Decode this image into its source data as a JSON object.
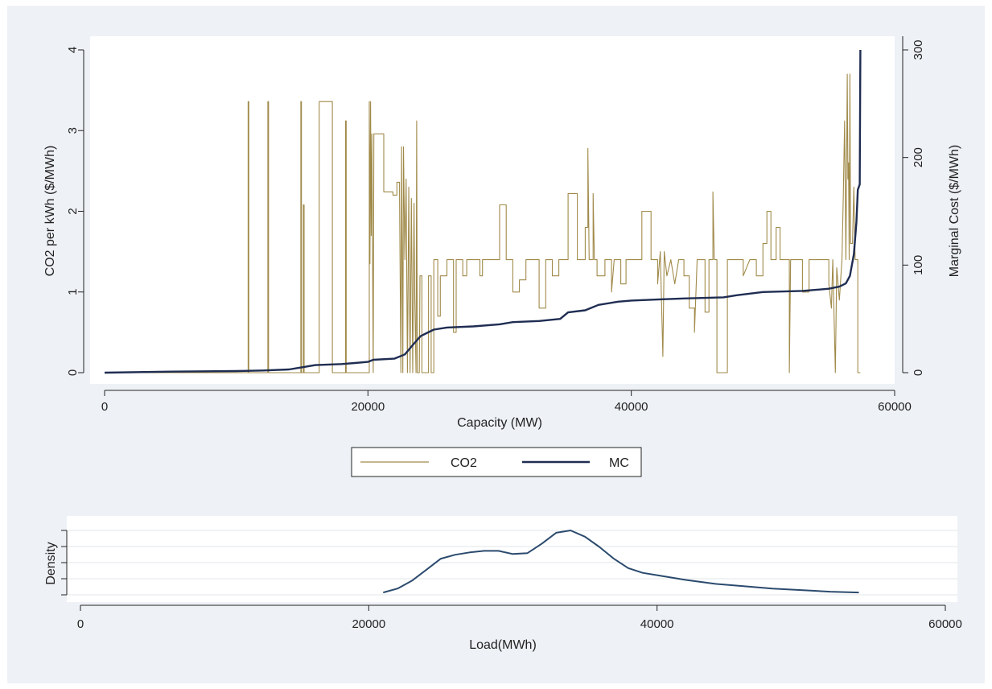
{
  "chart_data": [
    {
      "type": "line",
      "xlabel": "Capacity (MW)",
      "ylabel_left": "CO2 per kWh ($/MWh)",
      "ylabel_right": "Marginal Cost ($/MWh)",
      "xlim": [
        0,
        60000
      ],
      "ylim_left": [
        0,
        4
      ],
      "ylim_right": [
        0,
        300
      ],
      "x_ticks": [
        0,
        20000,
        40000,
        60000
      ],
      "y_ticks_left": [
        0,
        1,
        2,
        3,
        4
      ],
      "y_ticks_right": [
        0,
        100,
        200,
        300
      ],
      "grid": false,
      "legend": {
        "position": "bottom",
        "entries": [
          "CO2",
          "MC"
        ]
      },
      "series": [
        {
          "name": "CO2",
          "axis": "left",
          "color": "#a08a4a",
          "step": true,
          "points": [
            [
              0,
              0
            ],
            [
              10900,
              0
            ],
            [
              10900,
              3.36
            ],
            [
              10950,
              3.36
            ],
            [
              10950,
              0
            ],
            [
              12400,
              0
            ],
            [
              12400,
              3.36
            ],
            [
              12450,
              3.36
            ],
            [
              12450,
              0
            ],
            [
              14900,
              0
            ],
            [
              14900,
              3.36
            ],
            [
              14950,
              3.36
            ],
            [
              14950,
              0
            ],
            [
              15100,
              0
            ],
            [
              15100,
              2.08
            ],
            [
              15150,
              2.08
            ],
            [
              15150,
              0
            ],
            [
              16300,
              0
            ],
            [
              16300,
              3.36
            ],
            [
              17300,
              3.36
            ],
            [
              17300,
              0
            ],
            [
              18300,
              0
            ],
            [
              18300,
              3.12
            ],
            [
              18350,
              3.12
            ],
            [
              18350,
              0
            ],
            [
              20100,
              0
            ],
            [
              20100,
              3.36
            ],
            [
              20150,
              1.35
            ],
            [
              20200,
              3.36
            ],
            [
              20250,
              1.7
            ],
            [
              20300,
              2.96
            ],
            [
              20400,
              0
            ],
            [
              20450,
              2.96
            ],
            [
              21200,
              2.96
            ],
            [
              21200,
              2.24
            ],
            [
              21900,
              2.24
            ],
            [
              21900,
              2.2
            ],
            [
              22200,
              2.2
            ],
            [
              22200,
              2.36
            ],
            [
              22400,
              2.36
            ],
            [
              22400,
              2.2
            ],
            [
              22500,
              0
            ],
            [
              22550,
              2.8
            ],
            [
              22650,
              0
            ],
            [
              22700,
              2.8
            ],
            [
              22800,
              1.4
            ],
            [
              22900,
              2.4
            ],
            [
              23000,
              0
            ],
            [
              23100,
              2.3
            ],
            [
              23200,
              0
            ],
            [
              23300,
              2.16
            ],
            [
              23400,
              0
            ],
            [
              23500,
              2.1
            ],
            [
              23550,
              1.0
            ],
            [
              23650,
              0
            ],
            [
              23700,
              3.12
            ],
            [
              23750,
              0
            ],
            [
              23900,
              0
            ],
            [
              23950,
              1.2
            ],
            [
              24100,
              1.2
            ],
            [
              24100,
              0
            ],
            [
              24600,
              0
            ],
            [
              24600,
              1.2
            ],
            [
              24800,
              1.2
            ],
            [
              24800,
              0
            ],
            [
              25000,
              0
            ],
            [
              25000,
              1.4
            ],
            [
              25300,
              1.4
            ],
            [
              25300,
              0.7
            ],
            [
              25500,
              0.7
            ],
            [
              25500,
              1.2
            ],
            [
              26000,
              1.2
            ],
            [
              26000,
              1.4
            ],
            [
              26500,
              1.4
            ],
            [
              26500,
              0.5
            ],
            [
              26700,
              0.5
            ],
            [
              26700,
              1.4
            ],
            [
              27200,
              1.4
            ],
            [
              27200,
              1.2
            ],
            [
              27500,
              1.2
            ],
            [
              27500,
              1.4
            ],
            [
              28500,
              1.4
            ],
            [
              28500,
              1.2
            ],
            [
              28700,
              1.2
            ],
            [
              28700,
              1.4
            ],
            [
              30000,
              1.4
            ],
            [
              30000,
              2.08
            ],
            [
              30500,
              2.08
            ],
            [
              30500,
              1.4
            ],
            [
              31000,
              1.4
            ],
            [
              31000,
              1.0
            ],
            [
              31500,
              1.0
            ],
            [
              31500,
              1.15
            ],
            [
              32000,
              1.15
            ],
            [
              32000,
              1.4
            ],
            [
              33000,
              1.4
            ],
            [
              33000,
              0.8
            ],
            [
              33500,
              0.8
            ],
            [
              33500,
              1.4
            ],
            [
              34000,
              1.4
            ],
            [
              34000,
              1.2
            ],
            [
              34500,
              1.2
            ],
            [
              34500,
              1.4
            ],
            [
              35200,
              1.4
            ],
            [
              35200,
              2.22
            ],
            [
              35900,
              2.22
            ],
            [
              35900,
              1.4
            ],
            [
              36500,
              1.4
            ],
            [
              36500,
              1.8
            ],
            [
              36700,
              1.8
            ],
            [
              36700,
              2.78
            ],
            [
              36800,
              1.4
            ],
            [
              37100,
              1.4
            ],
            [
              37100,
              2.22
            ],
            [
              37200,
              1.4
            ],
            [
              37400,
              1.4
            ],
            [
              37400,
              1.2
            ],
            [
              38000,
              1.2
            ],
            [
              38000,
              1.4
            ],
            [
              38500,
              1.4
            ],
            [
              38500,
              1.0
            ],
            [
              38700,
              1.4
            ],
            [
              39200,
              1.4
            ],
            [
              39200,
              1.1
            ],
            [
              39600,
              1.1
            ],
            [
              39600,
              1.4
            ],
            [
              40800,
              1.4
            ],
            [
              40800,
              2.0
            ],
            [
              41500,
              2.0
            ],
            [
              41500,
              1.4
            ],
            [
              42000,
              1.4
            ],
            [
              42000,
              1.1
            ],
            [
              42200,
              1.5
            ],
            [
              42400,
              0.2
            ],
            [
              42500,
              1.5
            ],
            [
              42700,
              1.2
            ],
            [
              43000,
              1.4
            ],
            [
              43300,
              1.1
            ],
            [
              43600,
              1.4
            ],
            [
              44000,
              1.4
            ],
            [
              44000,
              1.2
            ],
            [
              44400,
              1.2
            ],
            [
              44400,
              0.8
            ],
            [
              44800,
              0.8
            ],
            [
              44800,
              0.5
            ],
            [
              45000,
              1.4
            ],
            [
              45600,
              1.4
            ],
            [
              45600,
              0.75
            ],
            [
              45900,
              0.75
            ],
            [
              45900,
              1.4
            ],
            [
              46200,
              1.4
            ],
            [
              46200,
              2.24
            ],
            [
              46300,
              1.4
            ],
            [
              46500,
              1.4
            ],
            [
              46500,
              0
            ],
            [
              47300,
              0
            ],
            [
              47300,
              1.4
            ],
            [
              48500,
              1.4
            ],
            [
              48500,
              1.2
            ],
            [
              49000,
              1.4
            ],
            [
              49500,
              1.4
            ],
            [
              49500,
              1.2
            ],
            [
              50000,
              1.2
            ],
            [
              50000,
              1.6
            ],
            [
              50300,
              1.6
            ],
            [
              50300,
              2.0
            ],
            [
              50600,
              2.0
            ],
            [
              50600,
              1.4
            ],
            [
              51000,
              1.4
            ],
            [
              51000,
              1.8
            ],
            [
              51300,
              1.8
            ],
            [
              51300,
              1.4
            ],
            [
              52000,
              1.4
            ],
            [
              52000,
              0
            ],
            [
              52100,
              1.4
            ],
            [
              53000,
              1.4
            ],
            [
              53000,
              1.0
            ],
            [
              53500,
              1.0
            ],
            [
              53500,
              1.4
            ],
            [
              55000,
              1.4
            ],
            [
              55000,
              1.1
            ],
            [
              55200,
              0.8
            ],
            [
              55300,
              1.4
            ],
            [
              55500,
              0
            ],
            [
              55600,
              1.3
            ],
            [
              55800,
              0.9
            ],
            [
              56000,
              1.4
            ],
            [
              56100,
              2.2
            ],
            [
              56200,
              3.12
            ],
            [
              56300,
              1.4
            ],
            [
              56400,
              3.7
            ],
            [
              56450,
              2.4
            ],
            [
              56500,
              2.6
            ],
            [
              56550,
              1.4
            ],
            [
              56600,
              3.7
            ],
            [
              56650,
              1.6
            ],
            [
              56800,
              1.6
            ],
            [
              56900,
              2.3
            ],
            [
              57000,
              1.4
            ],
            [
              57200,
              1.4
            ],
            [
              57200,
              0
            ],
            [
              57400,
              0
            ]
          ]
        },
        {
          "name": "MC",
          "axis": "right",
          "color": "#1f2d52",
          "step": false,
          "points": [
            [
              0,
              0
            ],
            [
              5000,
              1
            ],
            [
              10000,
              1.5
            ],
            [
              12000,
              2
            ],
            [
              14000,
              3
            ],
            [
              15000,
              5
            ],
            [
              16000,
              7
            ],
            [
              18000,
              8
            ],
            [
              19000,
              9
            ],
            [
              20000,
              10
            ],
            [
              20400,
              12
            ],
            [
              22000,
              13
            ],
            [
              22800,
              17
            ],
            [
              23500,
              27
            ],
            [
              24000,
              34
            ],
            [
              24500,
              37
            ],
            [
              25000,
              40
            ],
            [
              26000,
              42
            ],
            [
              28000,
              43
            ],
            [
              30000,
              45
            ],
            [
              31000,
              47
            ],
            [
              33000,
              48
            ],
            [
              34600,
              50
            ],
            [
              35200,
              56
            ],
            [
              36500,
              58
            ],
            [
              37500,
              63
            ],
            [
              39000,
              66
            ],
            [
              40000,
              67
            ],
            [
              42000,
              68
            ],
            [
              44000,
              69
            ],
            [
              47000,
              70
            ],
            [
              48000,
              72
            ],
            [
              50000,
              75
            ],
            [
              53000,
              76
            ],
            [
              54000,
              77
            ],
            [
              55000,
              78
            ],
            [
              55800,
              80
            ],
            [
              56300,
              83
            ],
            [
              56600,
              90
            ],
            [
              56900,
              110
            ],
            [
              57100,
              140
            ],
            [
              57200,
              170
            ],
            [
              57350,
              175
            ],
            [
              57400,
              300
            ]
          ]
        }
      ]
    },
    {
      "type": "line",
      "xlabel": "Load(MWh)",
      "ylabel": "Density",
      "xlim": [
        0,
        60000
      ],
      "x_ticks": [
        0,
        20000,
        40000,
        60000
      ],
      "grid": true,
      "series": [
        {
          "name": "",
          "color": "#2b4a6e",
          "points": [
            [
              21000,
              0.03
            ],
            [
              22000,
              0.08
            ],
            [
              23000,
              0.18
            ],
            [
              24000,
              0.32
            ],
            [
              25000,
              0.46
            ],
            [
              26000,
              0.51
            ],
            [
              27000,
              0.54
            ],
            [
              28000,
              0.56
            ],
            [
              29000,
              0.56
            ],
            [
              30000,
              0.52
            ],
            [
              31000,
              0.53
            ],
            [
              32000,
              0.65
            ],
            [
              33000,
              0.79
            ],
            [
              34000,
              0.82
            ],
            [
              35000,
              0.74
            ],
            [
              36000,
              0.61
            ],
            [
              37000,
              0.46
            ],
            [
              38000,
              0.34
            ],
            [
              39000,
              0.28
            ],
            [
              40000,
              0.25
            ],
            [
              42000,
              0.19
            ],
            [
              44000,
              0.14
            ],
            [
              46000,
              0.11
            ],
            [
              48000,
              0.08
            ],
            [
              50000,
              0.06
            ],
            [
              52000,
              0.04
            ],
            [
              54000,
              0.03
            ]
          ]
        }
      ]
    }
  ]
}
